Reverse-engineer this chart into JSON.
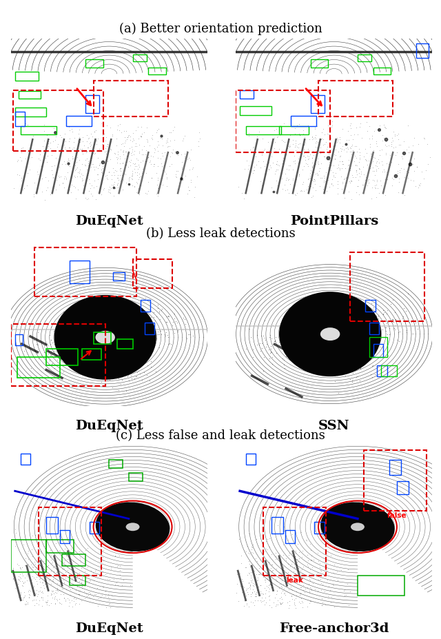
{
  "title_a": "(a) Better orientation prediction",
  "title_b": "(b) Less leak detections",
  "title_c": "(c) Less false and leak detections",
  "label_dueqnet": "DuEqNet",
  "label_pointpillars": "PointPillars",
  "label_ssn": "SSN",
  "label_freeanchor": "Free-anchor3d",
  "bg_color": "#ffffff",
  "title_fontsize": 13,
  "label_fontsize": 14,
  "fig_width": 6.4,
  "fig_height": 9.27
}
